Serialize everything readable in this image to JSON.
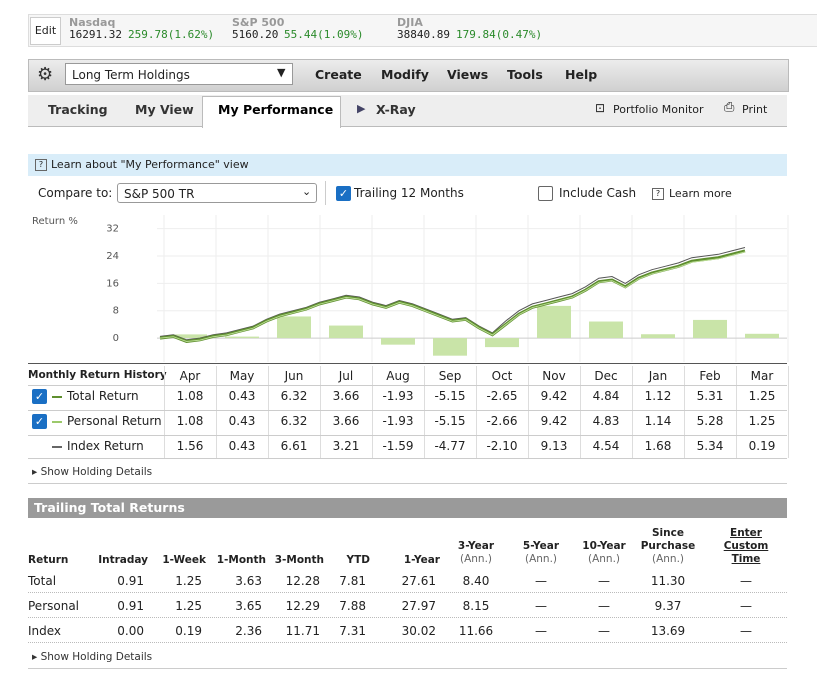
{
  "ticker": {
    "edit": "Edit",
    "indices": [
      {
        "name": "Nasdaq",
        "value": "16291.32",
        "change": "259.78(1.62%)"
      },
      {
        "name": "S&P 500",
        "value": "5160.20",
        "change": "55.44(1.09%)"
      },
      {
        "name": "DJIA",
        "value": "38840.89",
        "change": "179.84(0.47%)"
      }
    ]
  },
  "toolbar": {
    "portfolio": "Long Term Holdings",
    "menu": [
      "Create",
      "Modify",
      "Views",
      "Tools",
      "Help"
    ]
  },
  "tabs": {
    "items": [
      "Tracking",
      "My View",
      "My Performance",
      "X-Ray"
    ],
    "active": 2,
    "tools": [
      "Portfolio Monitor",
      "Print"
    ]
  },
  "info": "Learn about \"My Performance\" view",
  "compare": {
    "label": "Compare to:",
    "selected": "S&P 500 TR",
    "options": [
      {
        "label": "Trailing 12 Months",
        "checked": true
      },
      {
        "label": "Include Cash",
        "checked": false
      }
    ],
    "help": "Learn more"
  },
  "chart": {
    "type": "line",
    "y_label": "Return %",
    "ylim": [
      -7,
      36
    ],
    "yticks": [
      32,
      24,
      16,
      8,
      0
    ],
    "bar_color": "#c9e4a8",
    "series": [
      {
        "color": "#555555",
        "values": [
          0.5,
          1,
          -0.5,
          0,
          1,
          1.5,
          2.5,
          3.5,
          5.5,
          7,
          8,
          9,
          10.5,
          11.5,
          12.5,
          12,
          10.5,
          9.5,
          11,
          10,
          8.5,
          7,
          5.5,
          6,
          3.5,
          1.5,
          5,
          8,
          10,
          11,
          12,
          13,
          15,
          17.5,
          18,
          16,
          18.5,
          20,
          21,
          22,
          23.5,
          24,
          24.5,
          25.5,
          26.5
        ]
      },
      {
        "color": "#5f8f2f",
        "values": [
          0,
          0.5,
          -1,
          -0.5,
          0.5,
          1,
          2,
          3,
          5,
          6.5,
          7.5,
          8.5,
          10,
          11,
          12,
          11.5,
          10,
          9,
          10.5,
          9.5,
          8,
          6.5,
          5,
          5.5,
          3,
          1,
          4,
          7,
          9,
          10,
          11,
          12,
          14,
          16.5,
          17,
          15,
          17.5,
          19,
          20,
          21,
          22.5,
          23,
          23.5,
          24.5,
          25.5
        ]
      },
      {
        "color": "#b9dc92",
        "values": [
          0,
          0.4,
          -1,
          -0.6,
          0.4,
          0.9,
          1.9,
          2.9,
          4.9,
          6.4,
          7.4,
          8.4,
          9.9,
          10.9,
          11.9,
          11.4,
          9.9,
          8.9,
          10.4,
          9.4,
          7.9,
          6.4,
          4.9,
          5.4,
          2.9,
          0.9,
          3.9,
          6.9,
          8.9,
          9.9,
          10.9,
          11.9,
          13.9,
          16.3,
          16.8,
          14.8,
          17.3,
          18.8,
          19.8,
          20.8,
          22.2,
          22.7,
          23.2,
          24.2,
          25.2
        ]
      }
    ]
  },
  "monthly": {
    "title": "Monthly Return History",
    "months": [
      "Apr",
      "May",
      "Jun",
      "Jul",
      "Aug",
      "Sep",
      "Oct",
      "Nov",
      "Dec",
      "Jan",
      "Feb",
      "Mar"
    ],
    "rows": [
      {
        "name": "Total Return",
        "checked": true,
        "color": "#5f8f2f",
        "values": [
          1.08,
          0.43,
          6.32,
          3.66,
          -1.93,
          -5.15,
          -2.65,
          9.42,
          4.84,
          1.12,
          5.31,
          1.25
        ]
      },
      {
        "name": "Personal Return",
        "checked": true,
        "color": "#9cc96b",
        "values": [
          1.08,
          0.43,
          6.32,
          3.66,
          -1.93,
          -5.15,
          -2.66,
          9.42,
          4.83,
          1.14,
          5.28,
          1.25
        ]
      },
      {
        "name": "Index Return",
        "color": "#666666",
        "values": [
          1.56,
          0.43,
          6.61,
          3.21,
          -1.59,
          -4.77,
          -2.1,
          9.13,
          4.54,
          1.68,
          5.34,
          0.19
        ],
        "value_labels": [
          "1.56",
          "0.43",
          "6.61",
          "3.21",
          "-1.59",
          "-4.77",
          "-2.10",
          "9.13",
          "4.54",
          "1.68",
          "5.34",
          "0.19"
        ]
      }
    ],
    "details": "Show Holding Details"
  },
  "trailing": {
    "title": "Trailing Total Returns",
    "columns": [
      {
        "label": "Return"
      },
      {
        "label": "Intraday"
      },
      {
        "label": "1-Week"
      },
      {
        "label": "1-Month"
      },
      {
        "label": "3-Month"
      },
      {
        "label": "YTD"
      },
      {
        "label": "1-Year"
      },
      {
        "label": "3-Year",
        "note": "(Ann.)"
      },
      {
        "label": "5-Year",
        "note": "(Ann.)"
      },
      {
        "label": "10-Year",
        "note": "(Ann.)"
      },
      {
        "label": "Since Purchase",
        "note": "(Ann.)"
      },
      {
        "label": "Enter Custom Time",
        "link": true
      }
    ],
    "rows": [
      [
        "Total",
        "0.91",
        "1.25",
        "3.63",
        "12.28",
        "7.81",
        "27.61",
        "8.40",
        "—",
        "—",
        "11.30",
        "—"
      ],
      [
        "Personal",
        "0.91",
        "1.25",
        "3.65",
        "12.29",
        "7.88",
        "27.97",
        "8.15",
        "—",
        "—",
        "9.37",
        "—"
      ],
      [
        "Index",
        "0.00",
        "0.19",
        "2.36",
        "11.71",
        "7.31",
        "30.02",
        "11.66",
        "—",
        "—",
        "13.69",
        "—"
      ]
    ],
    "details": "Show Holding Details"
  }
}
